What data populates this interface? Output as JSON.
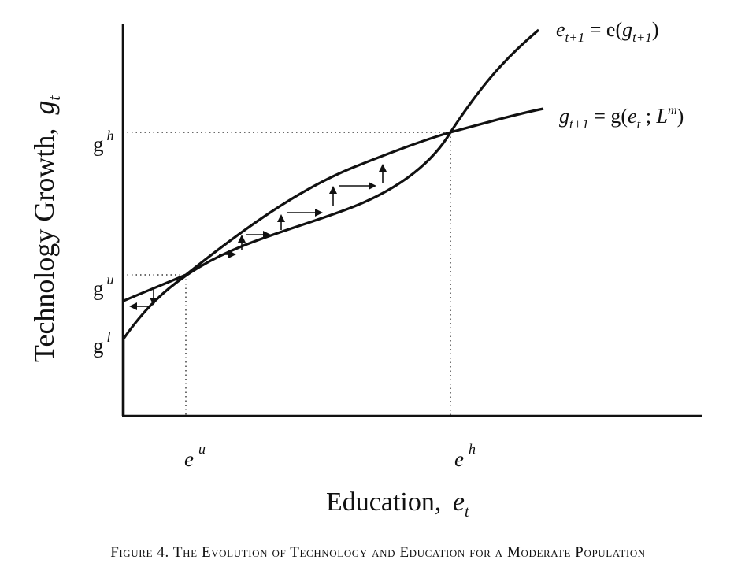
{
  "diagram": {
    "y_axis": {
      "title": "Technology Growth,",
      "symbol": "g",
      "subscript": "t"
    },
    "x_axis": {
      "title": "Education,",
      "symbol": "e",
      "subscript": "t"
    },
    "y_ticks": [
      {
        "base": "g",
        "sup": "h"
      },
      {
        "base": "g",
        "sup": "u"
      },
      {
        "base": "g",
        "sup": "l"
      }
    ],
    "x_ticks": [
      {
        "base": "e",
        "sup": "u"
      },
      {
        "base": "e",
        "sup": "h"
      }
    ],
    "curve_labels": {
      "education_curve": {
        "lhs": "e",
        "lhs_sub": "t+1",
        "eq": " = e(",
        "arg": "g",
        "arg_sub": "t+1",
        "close": ")"
      },
      "technology_curve": {
        "lhs": "g",
        "lhs_sub": "t+1",
        "eq": " = g(",
        "arg": "e",
        "arg_sub": "t",
        "sep": " ; ",
        "param": "L",
        "param_sup": "m",
        "close": ")"
      }
    },
    "caption": "Figure 4. The Evolution of Technology and Education for a Moderate Population"
  }
}
